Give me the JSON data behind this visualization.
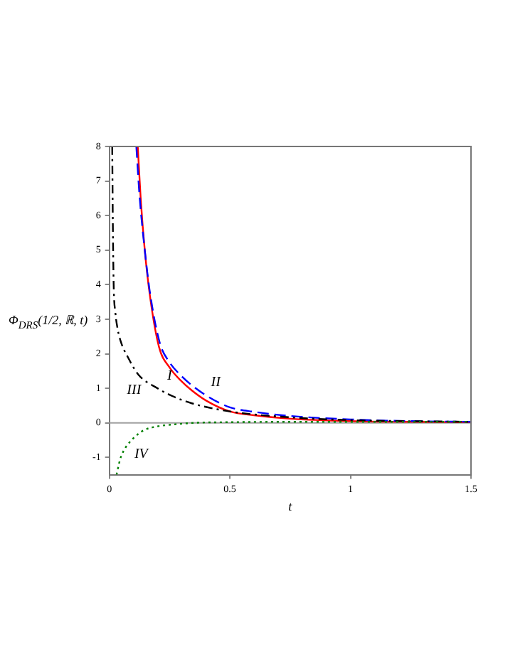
{
  "chart_data": {
    "type": "line",
    "xlabel": "t",
    "ylabel": "Φ$_{DRS}$(1/2, ℝ, t)",
    "xlim": [
      0,
      1.5
    ],
    "xticks": [
      0,
      0.5,
      1,
      1.5
    ],
    "ylim": [
      -1.5,
      8
    ],
    "yticks": [
      -1,
      0,
      1,
      2,
      3,
      4,
      5,
      6,
      7,
      8
    ],
    "grid": false,
    "legend": false,
    "marker": "none",
    "ref_lines": [
      {
        "axis": "y",
        "value": 0,
        "color": "#a0a0a0"
      }
    ],
    "series": [
      {
        "color": "#ff0000",
        "line_style": "solid",
        "x": [
          0.118,
          0.13,
          0.147,
          0.17,
          0.206,
          0.25,
          0.3,
          0.34,
          0.4,
          0.5,
          0.6,
          0.75,
          1,
          1.25,
          1.5
        ],
        "values": [
          8,
          6.5,
          5,
          3.6,
          2.2,
          1.6,
          1.2,
          0.95,
          0.65,
          0.33,
          0.22,
          0.12,
          0.05,
          0.03,
          0.02
        ]
      },
      {
        "color": "#0000ff",
        "line_style": "dashed",
        "x": [
          0.112,
          0.125,
          0.147,
          0.17,
          0.21,
          0.25,
          0.3,
          0.34,
          0.4,
          0.5,
          0.6,
          0.75,
          1,
          1.25,
          1.5
        ],
        "values": [
          8,
          6.6,
          5,
          3.7,
          2.3,
          1.75,
          1.35,
          1.1,
          0.8,
          0.45,
          0.32,
          0.2,
          0.1,
          0.05,
          0.03
        ]
      },
      {
        "color": "#000000",
        "line_style": "dashdot",
        "x": [
          0.012,
          0.015,
          0.018,
          0.025,
          0.035,
          0.05,
          0.077,
          0.12,
          0.2,
          0.27,
          0.34,
          0.5,
          0.75,
          1,
          1.5
        ],
        "values": [
          8,
          5.5,
          4,
          3.2,
          2.7,
          2.3,
          1.9,
          1.4,
          1,
          0.75,
          0.57,
          0.33,
          0.16,
          0.08,
          0.03
        ]
      },
      {
        "color": "#008000",
        "line_style": "dotted",
        "x": [
          0.03,
          0.045,
          0.06,
          0.088,
          0.12,
          0.147,
          0.2,
          0.26,
          0.35,
          0.5,
          0.75,
          1,
          1.5
        ],
        "values": [
          -1.5,
          -1.05,
          -0.8,
          -0.53,
          -0.32,
          -0.2,
          -0.1,
          -0.05,
          0,
          0.02,
          0.03,
          0.03,
          0.03
        ]
      }
    ],
    "annotations": [
      {
        "text": "I",
        "x": 0.25,
        "y": 1.35
      },
      {
        "text": "II",
        "x": 0.4,
        "y": 0.8
      },
      {
        "text": "III",
        "x": 0.12,
        "y": 1.4
      },
      {
        "text": "IV",
        "x": 0.12,
        "y": -0.32
      }
    ]
  }
}
